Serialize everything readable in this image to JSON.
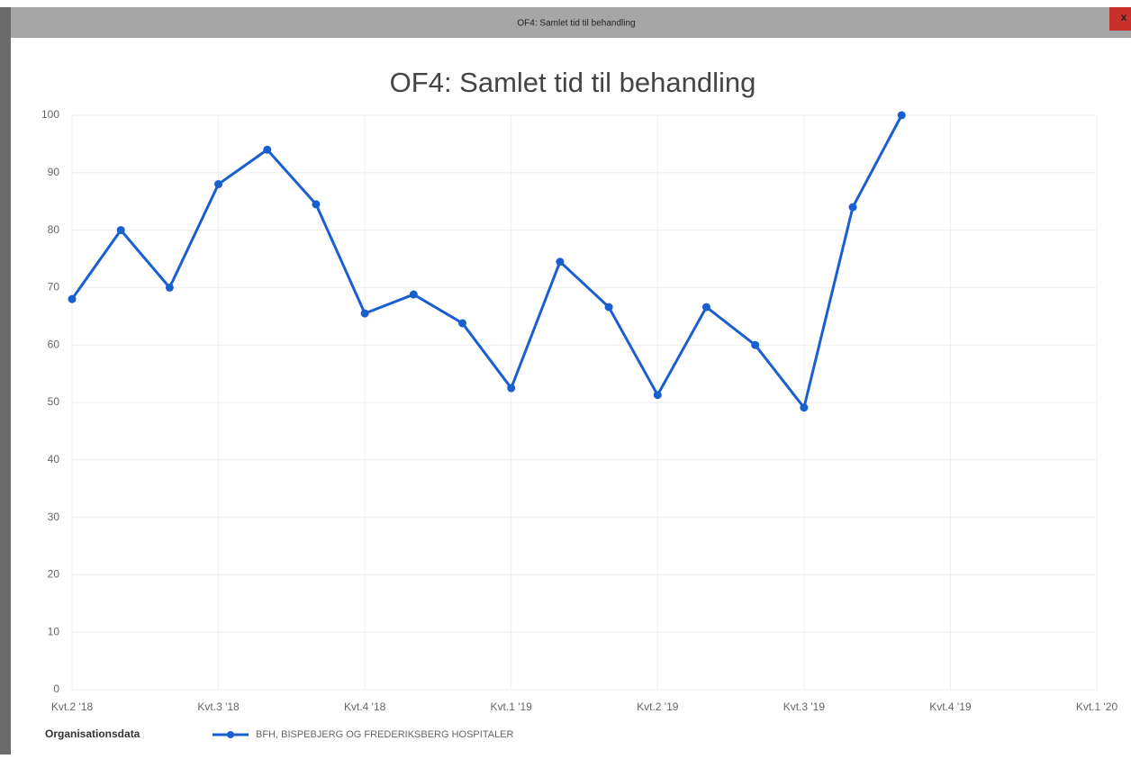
{
  "window": {
    "title": "OF4: Samlet tid til behandling",
    "close_label": "x"
  },
  "chart_data": {
    "type": "line",
    "title": "OF4: Samlet tid til behandling",
    "categories": [
      "Kvt.2 '18",
      null,
      null,
      "Kvt.3 '18",
      null,
      null,
      "Kvt.4 '18",
      null,
      null,
      "Kvt.1 '19",
      null,
      null,
      "Kvt.2 '19",
      null,
      null,
      "Kvt.3 '19",
      null,
      null,
      "Kvt.4 '19",
      null,
      null,
      "Kvt.1 '20"
    ],
    "series": [
      {
        "name": "BFH, BISPEBJERG OG FREDERIKSBERG HOSPITALER",
        "color": "#1a5fd0",
        "values": [
          68,
          80,
          70,
          88,
          94,
          84.5,
          65.5,
          68.8,
          63.8,
          52.5,
          74.5,
          66.6,
          51.3,
          66.6,
          60,
          49.1,
          84,
          100,
          null,
          null,
          null,
          null
        ]
      }
    ],
    "legend_title": "Organisationsdata",
    "ylim": [
      0,
      100
    ],
    "yticks": [
      0,
      10,
      20,
      30,
      40,
      50,
      60,
      70,
      80,
      90,
      100
    ],
    "grid": true
  }
}
